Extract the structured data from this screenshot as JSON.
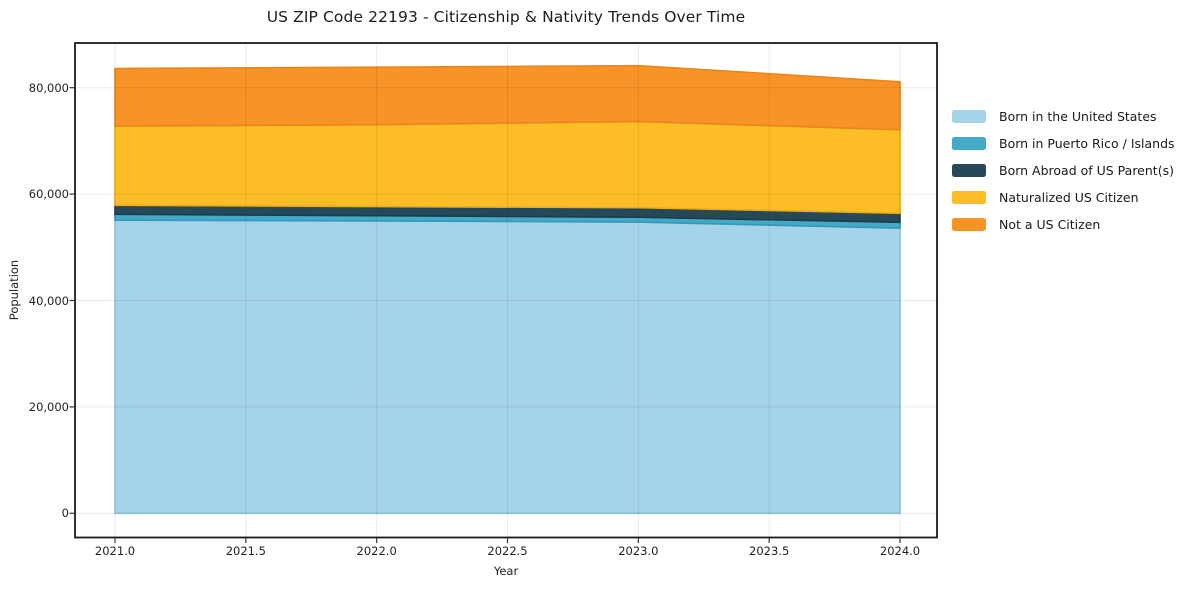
{
  "title": "US ZIP Code 22193 - Citizenship & Nativity Trends Over Time",
  "chart_data": {
    "type": "area",
    "stacked": true,
    "title": "US ZIP Code 22193 - Citizenship & Nativity Trends Over Time",
    "xlabel": "Year",
    "ylabel": "Population",
    "x": [
      2021,
      2022,
      2023,
      2024
    ],
    "series": [
      {
        "name": "Born in the United States",
        "color": "#a5d3ea",
        "edge": "#90c6e0",
        "values": [
          55100,
          54950,
          54750,
          53600
        ]
      },
      {
        "name": "Born in Puerto Rico / Islands",
        "color": "#42a9c7",
        "edge": "#3797b5",
        "values": [
          1100,
          1000,
          900,
          1100
        ]
      },
      {
        "name": "Born Abroad of US Parent(s)",
        "color": "#26495a",
        "edge": "#1d3b49",
        "values": [
          1700,
          1700,
          1800,
          1700
        ]
      },
      {
        "name": "Naturalized US Citizen",
        "color": "#fcbd26",
        "edge": "#f0ab16",
        "values": [
          14900,
          15400,
          16200,
          15700
        ]
      },
      {
        "name": "Not a US Citizen",
        "color": "#f79327",
        "edge": "#ea851a",
        "values": [
          10800,
          10800,
          10500,
          9000
        ]
      }
    ],
    "stack_totals": [
      83600,
      83850,
      84150,
      81100
    ],
    "x_ticks": [
      "2021.0",
      "2021.5",
      "2022.0",
      "2022.5",
      "2023.0",
      "2023.5",
      "2024.0"
    ],
    "x_tick_values": [
      2021.0,
      2021.5,
      2022.0,
      2022.5,
      2023.0,
      2023.5,
      2024.0
    ],
    "y_ticks": [
      "0",
      "20,000",
      "40,000",
      "60,000",
      "80,000"
    ],
    "y_tick_values": [
      0,
      20000,
      40000,
      60000,
      80000
    ],
    "ylim": [
      0,
      88400
    ],
    "xlim": [
      2020.85,
      2024.14
    ],
    "grid": true,
    "legend_position": "right-outside",
    "grid_color": "#ececec",
    "spine_color": "#1a1a1a",
    "background_color": "#ffffff"
  }
}
